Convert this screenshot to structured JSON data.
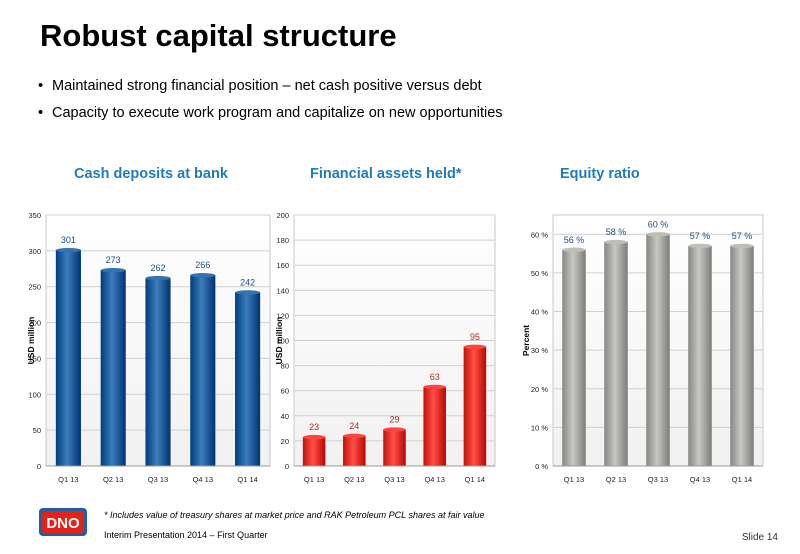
{
  "page": {
    "title": "Robust capital structure",
    "bullets": [
      "Maintained strong financial position – net cash positive versus debt",
      "Capacity to execute work program and capitalize on new opportunities"
    ],
    "footnote": "* Includes value of treasury shares at market price and RAK Petroleum PCL shares at fair value",
    "footer": "Interim Presentation 2014 – First Quarter",
    "slide_number": "Slide 14",
    "logo_text": "DNO",
    "colors": {
      "title_blue": "#1f7bbd",
      "bar_blue": "#1e5f9e",
      "bar_red": "#e8322a",
      "bar_grey": "#a9a9a5",
      "logo_red": "#e2231a",
      "logo_blue": "#1f5fa8"
    }
  },
  "chart_data": [
    {
      "type": "bar",
      "title": "Cash deposits at bank",
      "ylabel": "USD million",
      "categories": [
        "Q1 13",
        "Q2 13",
        "Q3 13",
        "Q4 13",
        "Q1 14"
      ],
      "values": [
        301,
        273,
        262,
        266,
        242
      ],
      "data_labels": [
        "301",
        "273",
        "262",
        "266",
        "242"
      ],
      "ylim": [
        0,
        350
      ],
      "yticks": [
        "0",
        "50",
        "100",
        "150",
        "200",
        "250",
        "300",
        "350"
      ],
      "grid": true,
      "color": "#1e5f9e"
    },
    {
      "type": "bar",
      "title": "Financial assets held*",
      "ylabel": "USD million",
      "categories": [
        "Q1 13",
        "Q2 13",
        "Q3 13",
        "Q4 13",
        "Q1 14"
      ],
      "values": [
        23,
        24,
        29,
        63,
        95
      ],
      "data_labels": [
        "23",
        "24",
        "29",
        "63",
        "95"
      ],
      "ylim": [
        0,
        200
      ],
      "yticks": [
        "0",
        "20",
        "40",
        "60",
        "80",
        "100",
        "120",
        "140",
        "160",
        "180",
        "200"
      ],
      "grid": true,
      "color": "#e8322a"
    },
    {
      "type": "bar",
      "title": "Equity ratio",
      "ylabel": "Percent",
      "categories": [
        "Q1 13",
        "Q2 13",
        "Q3 13",
        "Q4 13",
        "Q1 14"
      ],
      "values": [
        56,
        58,
        60,
        57,
        57
      ],
      "data_labels": [
        "56 %",
        "58 %",
        "60 %",
        "57 %",
        "57 %"
      ],
      "ylim": [
        0,
        65
      ],
      "yticks": [
        "0 %",
        "10 %",
        "20 %",
        "30 %",
        "40 %",
        "50 %",
        "60 %"
      ],
      "grid": true,
      "color": "#a9a9a5"
    }
  ]
}
